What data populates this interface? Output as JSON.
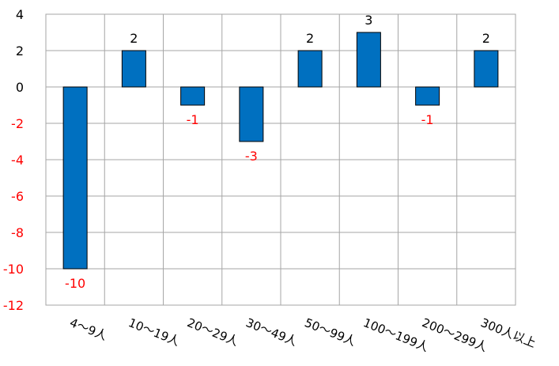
{
  "chart_data": {
    "type": "bar",
    "categories": [
      "4～9人",
      "10～19人",
      "20～29人",
      "30～49人",
      "50～99人",
      "100～199人",
      "200～299人",
      "300人以上"
    ],
    "values": [
      -10,
      2,
      -1,
      -3,
      2,
      3,
      -1,
      2
    ],
    "data_labels": [
      "-10",
      "2",
      "-1",
      "-3",
      "2",
      "3",
      "-1",
      "2"
    ],
    "y_ticks": [
      4,
      2,
      0,
      -2,
      -4,
      -6,
      -8,
      -10,
      -12
    ],
    "ylim": [
      -12,
      4
    ],
    "grid": true,
    "bar_color": "#0070C0",
    "negative_label_color": "#FF0000",
    "positive_label_color": "#000000"
  }
}
